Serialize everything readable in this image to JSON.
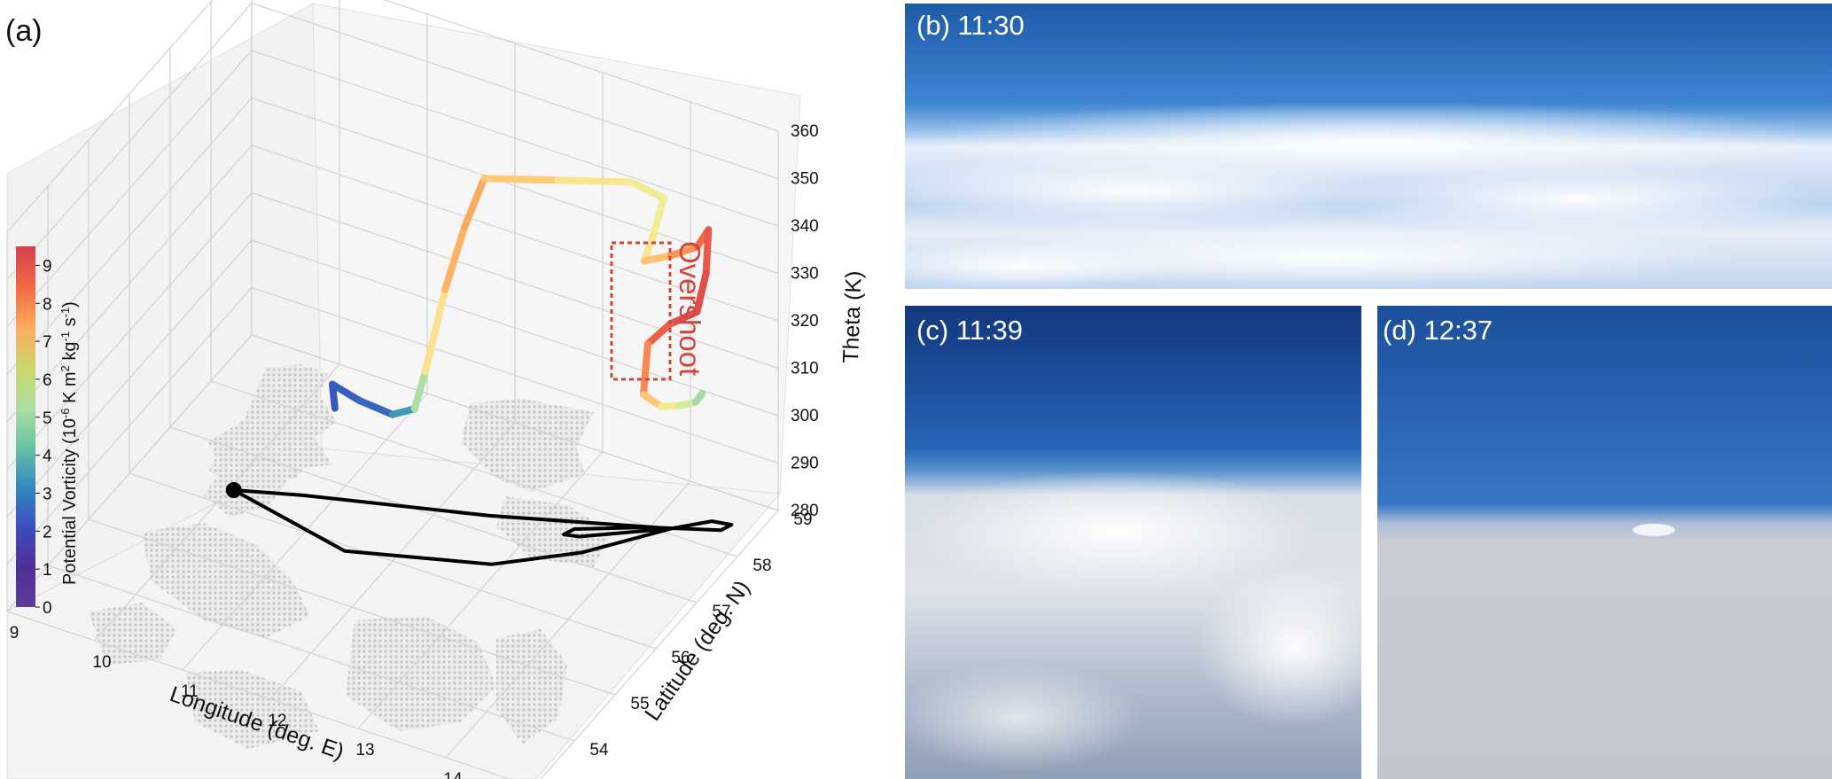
{
  "panel_a_label": "(a)",
  "chart_data": {
    "type": "line",
    "projection": "3d",
    "xlabel": "Longitude (deg. E)",
    "ylabel": "Latitude (deg. N)",
    "zlabel": "Theta (K)",
    "xlim": [
      9,
      15
    ],
    "ylim": [
      53,
      59
    ],
    "zlim": [
      280,
      360
    ],
    "x_ticks": [
      "9",
      "10",
      "11",
      "12",
      "13",
      "14"
    ],
    "y_ticks": [
      "54",
      "55",
      "56",
      "57",
      "58",
      "59"
    ],
    "z_ticks": [
      "280",
      "290",
      "300",
      "310",
      "320",
      "330",
      "340",
      "350",
      "360"
    ],
    "colorbar": {
      "label_main": "Potential Vorticity (10",
      "label_exp1": "-6",
      "label_mid": " K m",
      "label_exp2": "2",
      "label_mid2": " kg",
      "label_exp3": "-1",
      "label_mid3": " s",
      "label_exp4": "-1",
      "label_end": ")",
      "ticks": [
        "0",
        "1",
        "2",
        "3",
        "4",
        "5",
        "6",
        "7",
        "8",
        "9"
      ],
      "range": [
        0,
        9.5
      ],
      "colormap": [
        "#5e3c99",
        "#3b4cc0",
        "#3288bd",
        "#66c2a5",
        "#abdda4",
        "#e6f598",
        "#fee08b",
        "#fdae61",
        "#f46d43",
        "#d53e4f"
      ]
    },
    "annotation": "Overshoot",
    "annotation_color": "#d0443a",
    "series": [
      {
        "kind": "flight-theta",
        "points": [
          {
            "lon": 10.45,
            "lat": 57.92,
            "theta": 284,
            "pv": 1.0
          },
          {
            "lon": 10.5,
            "lat": 57.75,
            "theta": 291,
            "pv": 1.5
          },
          {
            "lon": 10.9,
            "lat": 57.55,
            "theta": 292,
            "pv": 1.2
          },
          {
            "lon": 11.3,
            "lat": 57.5,
            "theta": 292,
            "pv": 1.8
          },
          {
            "lon": 11.6,
            "lat": 57.4,
            "theta": 296,
            "pv": 3.0
          },
          {
            "lon": 11.7,
            "lat": 57.45,
            "theta": 304,
            "pv": 5.5
          },
          {
            "lon": 11.9,
            "lat": 57.5,
            "theta": 322,
            "pv": 7.0
          },
          {
            "lon": 12.1,
            "lat": 57.55,
            "theta": 336,
            "pv": 7.6
          },
          {
            "lon": 12.3,
            "lat": 57.6,
            "theta": 347,
            "pv": 7.3
          },
          {
            "lon": 13.0,
            "lat": 57.9,
            "theta": 348,
            "pv": 6.3
          },
          {
            "lon": 13.7,
            "lat": 58.2,
            "theta": 349,
            "pv": 5.9
          },
          {
            "lon": 14.0,
            "lat": 58.35,
            "theta": 346,
            "pv": 5.6
          },
          {
            "lon": 13.9,
            "lat": 58.3,
            "theta": 338,
            "pv": 5.8
          },
          {
            "lon": 13.8,
            "lat": 58.3,
            "theta": 332,
            "pv": 6.5
          },
          {
            "lon": 14.1,
            "lat": 58.3,
            "theta": 335,
            "pv": 7.4
          },
          {
            "lon": 14.45,
            "lat": 58.2,
            "theta": 340,
            "pv": 8.2
          },
          {
            "lon": 14.6,
            "lat": 58.15,
            "theta": 345,
            "pv": 8.8
          },
          {
            "lon": 14.55,
            "lat": 58.2,
            "theta": 335,
            "pv": 9.0
          },
          {
            "lon": 14.4,
            "lat": 58.3,
            "theta": 325,
            "pv": 9.3
          },
          {
            "lon": 14.0,
            "lat": 58.5,
            "theta": 318,
            "pv": 9.0
          },
          {
            "lon": 13.7,
            "lat": 58.6,
            "theta": 311,
            "pv": 8.5
          },
          {
            "lon": 13.65,
            "lat": 58.6,
            "theta": 300,
            "pv": 7.5
          },
          {
            "lon": 13.9,
            "lat": 58.5,
            "theta": 300,
            "pv": 6.3
          },
          {
            "lon": 14.2,
            "lat": 58.3,
            "theta": 304,
            "pv": 5.3
          },
          {
            "lon": 14.5,
            "lat": 58.05,
            "theta": 309,
            "pv": 4.5
          },
          {
            "lon": 14.6,
            "lat": 58.0,
            "theta": 312,
            "pv": 3.8
          }
        ]
      },
      {
        "kind": "flight-ground-track",
        "points": [
          {
            "lon": 10.05,
            "lat": 56.3
          },
          {
            "lon": 10.7,
            "lat": 56.6
          },
          {
            "lon": 12.5,
            "lat": 57.3
          },
          {
            "lon": 14.2,
            "lat": 58.1
          },
          {
            "lon": 14.5,
            "lat": 58.45
          },
          {
            "lon": 14.7,
            "lat": 58.5
          },
          {
            "lon": 14.65,
            "lat": 58.35
          },
          {
            "lon": 14.0,
            "lat": 58.0
          },
          {
            "lon": 13.35,
            "lat": 57.55
          },
          {
            "lon": 13.3,
            "lat": 57.4
          },
          {
            "lon": 13.45,
            "lat": 57.45
          },
          {
            "lon": 14.2,
            "lat": 58.1
          },
          {
            "lon": 13.6,
            "lat": 57.2
          },
          {
            "lon": 12.9,
            "lat": 56.5
          },
          {
            "lon": 11.5,
            "lat": 55.9
          },
          {
            "lon": 10.05,
            "lat": 56.3
          }
        ]
      }
    ]
  },
  "photos": [
    {
      "label": "(b) 11:30"
    },
    {
      "label": "(c) 11:39"
    },
    {
      "label": "(d) 12:37"
    }
  ]
}
